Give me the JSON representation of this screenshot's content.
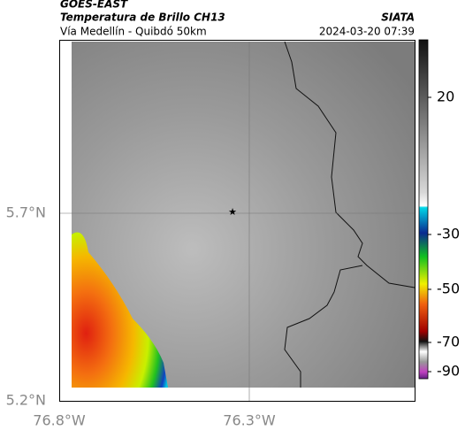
{
  "header": {
    "product": "GOES-EAST",
    "title": "Temperatura de Brillo CH13",
    "subtitle": "Vía Medellín - Quibdó 50km",
    "source": "SIATA",
    "datetime": "2024-03-20 07:39"
  },
  "map": {
    "lat_labels": [
      "5.7°N",
      "5.2°N"
    ],
    "lon_labels": [
      "76.8°W",
      "76.3°W"
    ]
  },
  "colorbar": {
    "ticks": [
      "20",
      "-30",
      "-50",
      "-70",
      "-90"
    ]
  }
}
